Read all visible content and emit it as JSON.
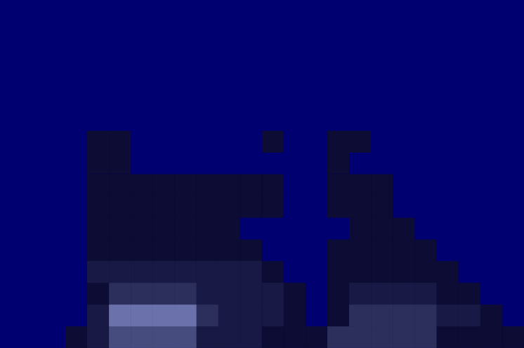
{
  "chart_data": {
    "type": "heatmap",
    "tick_labels": false,
    "grid": false,
    "color_range": [
      0,
      6
    ],
    "cells": [
      [
        0,
        0,
        0,
        0,
        0,
        0,
        0,
        0,
        0,
        0,
        0,
        0,
        0,
        0,
        0,
        0,
        0,
        0,
        0,
        0,
        0,
        0,
        0,
        0
      ],
      [
        0,
        0,
        0,
        0,
        0,
        0,
        0,
        0,
        0,
        0,
        0,
        0,
        0,
        0,
        0,
        0,
        0,
        0,
        0,
        0,
        0,
        0,
        0,
        0
      ],
      [
        0,
        0,
        0,
        0,
        0,
        0,
        0,
        0,
        0,
        0,
        0,
        0,
        0,
        0,
        0,
        0,
        0,
        0,
        0,
        0,
        0,
        0,
        0,
        0
      ],
      [
        0,
        0,
        0,
        0,
        0,
        0,
        0,
        0,
        0,
        0,
        0,
        0,
        0,
        0,
        0,
        0,
        0,
        0,
        0,
        0,
        0,
        0,
        0,
        0
      ],
      [
        0,
        0,
        0,
        0,
        0,
        0,
        0,
        0,
        0,
        0,
        0,
        0,
        0,
        0,
        0,
        0,
        0,
        0,
        0,
        0,
        0,
        0,
        0,
        0
      ],
      [
        0,
        0,
        0,
        0,
        0,
        0,
        0,
        0,
        0,
        0,
        0,
        0,
        0,
        0,
        0,
        0,
        0,
        0,
        0,
        0,
        0,
        0,
        0,
        0
      ],
      [
        0,
        0,
        0,
        0,
        1,
        1,
        0,
        0,
        0,
        0,
        0,
        0,
        1,
        0,
        0,
        1,
        1,
        0,
        0,
        0,
        0,
        0,
        0,
        0
      ],
      [
        0,
        0,
        0,
        0,
        1,
        1,
        0,
        0,
        0,
        0,
        0,
        0,
        0,
        0,
        0,
        1,
        0,
        0,
        0,
        0,
        0,
        0,
        0,
        0
      ],
      [
        0,
        0,
        0,
        0,
        1,
        1,
        1,
        1,
        1,
        1,
        1,
        1,
        1,
        0,
        0,
        1,
        1,
        1,
        0,
        0,
        0,
        0,
        0,
        0
      ],
      [
        0,
        0,
        0,
        0,
        1,
        1,
        1,
        1,
        1,
        1,
        1,
        1,
        1,
        0,
        0,
        1,
        1,
        1,
        0,
        0,
        0,
        0,
        0,
        0
      ],
      [
        0,
        0,
        0,
        0,
        1,
        1,
        1,
        1,
        1,
        1,
        1,
        0,
        0,
        0,
        0,
        0,
        1,
        1,
        1,
        0,
        0,
        0,
        0,
        0
      ],
      [
        0,
        0,
        0,
        0,
        1,
        1,
        1,
        1,
        1,
        1,
        1,
        1,
        0,
        0,
        0,
        1,
        1,
        1,
        1,
        1,
        0,
        0,
        0,
        0
      ],
      [
        0,
        0,
        0,
        0,
        2,
        2,
        2,
        2,
        2,
        2,
        2,
        2,
        1,
        0,
        0,
        1,
        1,
        1,
        1,
        1,
        1,
        0,
        0,
        0
      ],
      [
        0,
        0,
        0,
        0,
        1,
        3,
        3,
        3,
        3,
        2,
        2,
        2,
        2,
        1,
        0,
        1,
        2,
        2,
        2,
        2,
        1,
        1,
        0,
        0
      ],
      [
        0,
        0,
        0,
        0,
        2,
        5,
        5,
        5,
        5,
        3,
        2,
        2,
        2,
        1,
        0,
        1,
        3,
        3,
        3,
        3,
        2,
        2,
        1,
        0
      ],
      [
        0,
        0,
        0,
        1,
        2,
        4,
        4,
        4,
        4,
        2,
        2,
        2,
        1,
        1,
        1,
        3,
        3,
        3,
        3,
        3,
        1,
        1,
        1,
        1
      ]
    ]
  }
}
